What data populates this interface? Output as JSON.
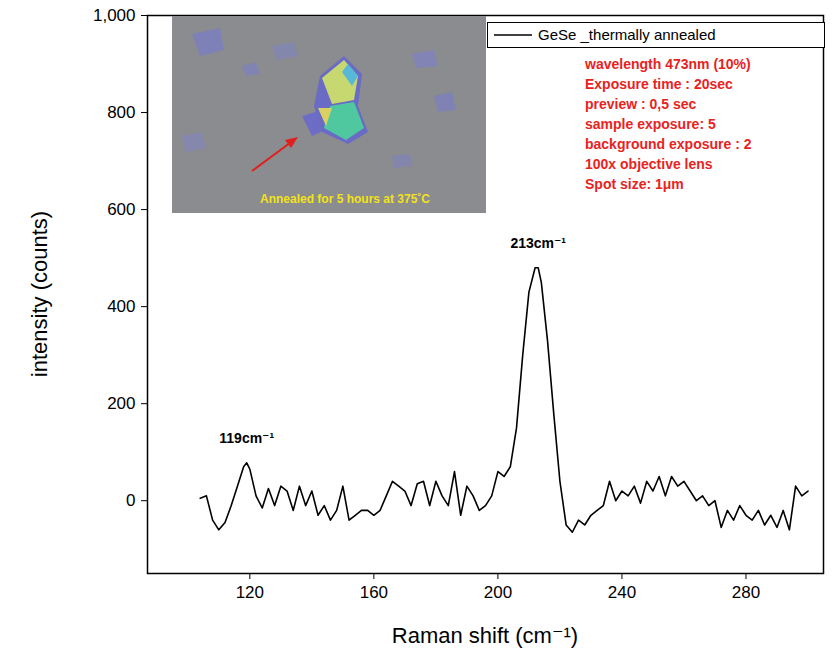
{
  "chart_data": {
    "type": "line",
    "x_label": "Raman shift (cm⁻¹)",
    "y_label": "intensity (counts)",
    "xlim": [
      87,
      305
    ],
    "ylim": [
      -150,
      1000
    ],
    "xticks": [
      120,
      160,
      200,
      240,
      280
    ],
    "yticks": [
      0,
      200,
      400,
      600,
      800,
      1000
    ],
    "legend": "top-right",
    "x": [
      104,
      106,
      108,
      110,
      112,
      114,
      116,
      118,
      119,
      120,
      122,
      124,
      126,
      128,
      130,
      132,
      134,
      136,
      138,
      140,
      142,
      144,
      146,
      148,
      150,
      152,
      154,
      156,
      158,
      160,
      162,
      164,
      166,
      168,
      170,
      172,
      174,
      176,
      178,
      180,
      182,
      184,
      186,
      188,
      190,
      192,
      194,
      196,
      198,
      200,
      202,
      204,
      206,
      208,
      210,
      212,
      213,
      214,
      216,
      218,
      220,
      222,
      224,
      226,
      228,
      230,
      232,
      234,
      236,
      238,
      240,
      242,
      244,
      246,
      248,
      250,
      252,
      254,
      256,
      258,
      260,
      262,
      264,
      266,
      268,
      270,
      272,
      274,
      276,
      278,
      280,
      282,
      284,
      286,
      288,
      290,
      292,
      294,
      296,
      298,
      300
    ],
    "series": [
      {
        "name": "GeSe _thermally annealed",
        "color": "#000000",
        "values": [
          5,
          10,
          -40,
          -60,
          -45,
          -10,
          30,
          70,
          78,
          65,
          10,
          -15,
          25,
          -10,
          30,
          20,
          -20,
          30,
          -10,
          20,
          -30,
          -10,
          -40,
          -20,
          30,
          -40,
          -30,
          -20,
          -20,
          -30,
          -20,
          10,
          40,
          30,
          20,
          -10,
          35,
          40,
          -10,
          40,
          10,
          -10,
          60,
          -30,
          30,
          10,
          -20,
          -10,
          10,
          60,
          50,
          70,
          150,
          300,
          430,
          480,
          480,
          450,
          330,
          180,
          40,
          -50,
          -65,
          -40,
          -50,
          -30,
          -20,
          -10,
          40,
          0,
          20,
          10,
          30,
          -5,
          40,
          20,
          50,
          10,
          50,
          30,
          40,
          20,
          0,
          10,
          -10,
          0,
          -55,
          -20,
          -40,
          -10,
          -30,
          -40,
          -20,
          -50,
          -30,
          -55,
          -20,
          -60,
          30,
          10,
          20
        ]
      }
    ],
    "annotations": [
      {
        "text": "119cm⁻¹",
        "x": 119,
        "y": 78
      },
      {
        "text": "213cm⁻¹",
        "x": 213,
        "y": 480
      }
    ],
    "notes": [
      "wavelength 473nm (10%)",
      "Exposure time : 20sec",
      "preview : 0,5 sec",
      "sample exposure: 5",
      "background exposure : 2",
      "100x objective lens",
      "Spot size: 1μm"
    ],
    "inset": {
      "caption": "Annealed for 5 hours at 375˚C"
    }
  }
}
